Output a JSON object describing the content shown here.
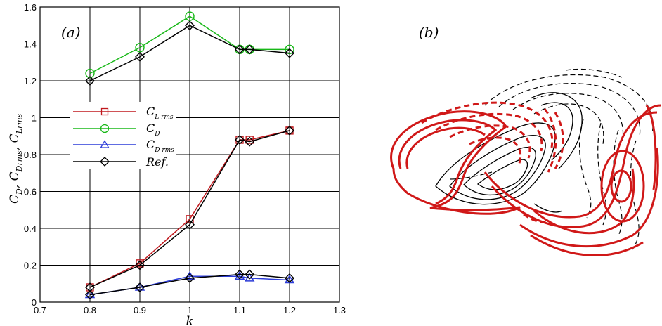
{
  "chart_data": [
    {
      "type": "line",
      "panel_label": "(a)",
      "xlabel": "k",
      "ylabel_parts": [
        "C",
        "D",
        ", C",
        "Drms",
        ", C",
        "Lrms"
      ],
      "xlim": [
        0.7,
        1.3
      ],
      "ylim": [
        0,
        1.6
      ],
      "xticks": [
        0.7,
        0.8,
        0.9,
        1,
        1.1,
        1.2,
        1.3
      ],
      "yticks": [
        0,
        0.2,
        0.4,
        0.6,
        0.8,
        1,
        1.2,
        1.4,
        1.6
      ],
      "xtick_labels": [
        "0.7",
        "0.8",
        "0.9",
        "1",
        "1.1",
        "1.2",
        "1.3"
      ],
      "ytick_labels": [
        "0",
        "0.2",
        "0.4",
        "0.6",
        "0.8",
        "1",
        "1.2",
        "1.4",
        "1.6"
      ],
      "grid": true,
      "legend_position": "left-middle",
      "series": [
        {
          "name": "C_Lrms",
          "legend_main": "C",
          "legend_sub": "L rms",
          "marker": "square",
          "color": "#c0191e",
          "x": [
            0.8,
            0.9,
            1.0,
            1.1,
            1.12,
            1.2
          ],
          "y": [
            0.08,
            0.21,
            0.45,
            0.88,
            0.88,
            0.93
          ]
        },
        {
          "name": "C_D",
          "legend_main": "C",
          "legend_sub": "D",
          "marker": "circle",
          "color": "#18b818",
          "x": [
            0.8,
            0.9,
            1.0,
            1.1,
            1.12,
            1.2
          ],
          "y": [
            1.24,
            1.38,
            1.55,
            1.37,
            1.37,
            1.37
          ]
        },
        {
          "name": "C_Drms",
          "legend_main": "C",
          "legend_sub": "D rms",
          "marker": "triangle",
          "color": "#2c3cd8",
          "x": [
            0.8,
            0.9,
            1.0,
            1.1,
            1.12,
            1.2
          ],
          "y": [
            0.04,
            0.08,
            0.14,
            0.14,
            0.13,
            0.12
          ]
        },
        {
          "name": "Ref.",
          "legend_main": "Ref.",
          "legend_sub": "",
          "marker": "diamond",
          "color": "#000000",
          "x": [
            0.8,
            0.9,
            1.0,
            1.1,
            1.12,
            1.2
          ],
          "y": [
            1.2,
            1.33,
            1.5,
            1.37,
            1.37,
            1.35
          ]
        },
        {
          "name": "Ref.",
          "legend_main": "",
          "legend_sub": "",
          "marker": "diamond",
          "color": "#000000",
          "x": [
            0.8,
            0.9,
            1.0,
            1.1,
            1.12,
            1.2
          ],
          "y": [
            0.08,
            0.2,
            0.42,
            0.88,
            0.87,
            0.93
          ]
        },
        {
          "name": "Ref.",
          "legend_main": "",
          "legend_sub": "",
          "marker": "diamond",
          "color": "#000000",
          "x": [
            0.8,
            0.9,
            1.0,
            1.1,
            1.12,
            1.2
          ],
          "y": [
            0.04,
            0.08,
            0.13,
            0.15,
            0.15,
            0.13
          ]
        }
      ]
    },
    {
      "type": "contour",
      "panel_label": "(b)",
      "colors": {
        "red": "#d01818",
        "black": "#000000"
      }
    }
  ]
}
